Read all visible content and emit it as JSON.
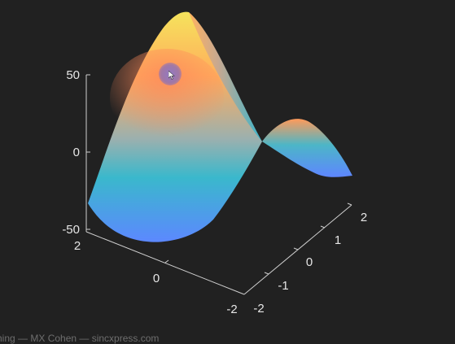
{
  "chart_data": {
    "type": "surface",
    "title": "",
    "xlabel": "",
    "ylabel": "",
    "zlabel": "",
    "x_range": [
      -2,
      2
    ],
    "y_range": [
      -2,
      2
    ],
    "z_range": [
      -50,
      50
    ],
    "function": "z = 10 * x^2 - 10 * y^2 (saddle surface)",
    "grid_x": [
      -2,
      -1,
      0,
      1,
      2
    ],
    "grid_y": [
      -2,
      -1,
      0,
      1,
      2
    ],
    "z_values": [
      [
        0,
        -30,
        -40,
        -30,
        0
      ],
      [
        30,
        0,
        -10,
        0,
        30
      ],
      [
        40,
        10,
        0,
        10,
        40
      ],
      [
        30,
        0,
        -10,
        0,
        30
      ],
      [
        0,
        -30,
        -40,
        -30,
        0
      ]
    ],
    "z_ticks": [
      "50",
      "0",
      "-50"
    ],
    "y_ticks": [
      "2",
      "1",
      "0",
      "-1",
      "-2"
    ],
    "x_ticks": [
      "2",
      "0",
      "-2"
    ],
    "colors": {
      "background": "#212121",
      "low": "#5b8cff",
      "mid_low": "#3bb7c9",
      "mid": "#9fb0b0",
      "mid_high": "#ff9e5a",
      "high": "#f2e05a"
    },
    "grid": false
  },
  "footer": {
    "credit": "hing — MX Cohen — sincxpress.com"
  }
}
